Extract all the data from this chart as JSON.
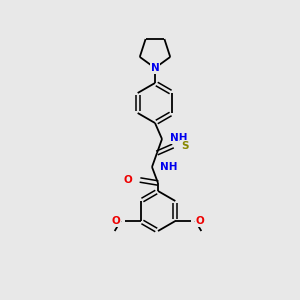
{
  "background_color": "#e8e8e8",
  "bond_color": "#000000",
  "atom_colors": {
    "N": "#0000ee",
    "O": "#ee0000",
    "S": "#888800",
    "H": "#007070",
    "C": "#000000"
  },
  "figsize": [
    3.0,
    3.0
  ],
  "dpi": 100
}
